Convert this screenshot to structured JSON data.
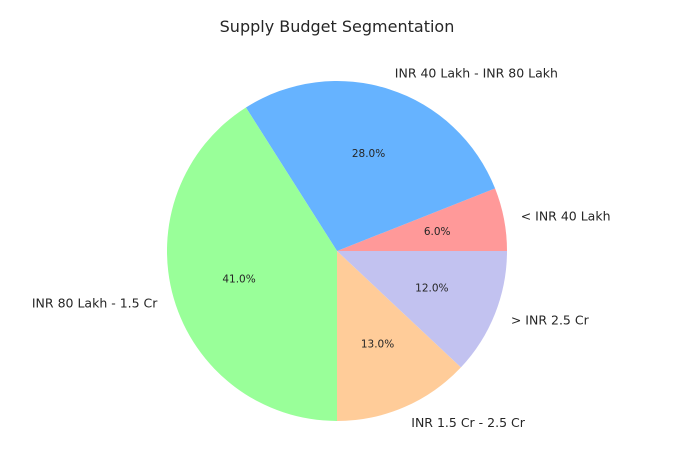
{
  "chart_data": {
    "type": "pie",
    "title": "Supply Budget Segmentation",
    "slices": [
      {
        "label": "< INR 40 Lakh",
        "value": 6.0,
        "pct_label": "6.0%",
        "color": "#ff9999"
      },
      {
        "label": "INR 40 Lakh - INR 80 Lakh",
        "value": 28.0,
        "pct_label": "28.0%",
        "color": "#66b3ff"
      },
      {
        "label": "INR 80 Lakh - 1.5 Cr",
        "value": 41.0,
        "pct_label": "41.0%",
        "color": "#99ff99"
      },
      {
        "label": "INR 1.5 Cr - 2.5 Cr",
        "value": 13.0,
        "pct_label": "13.0%",
        "color": "#ffcc99"
      },
      {
        "label": "> INR 2.5 Cr",
        "value": 12.0,
        "pct_label": "12.0%",
        "color": "#c2c2f0"
      }
    ],
    "legend": "none"
  }
}
